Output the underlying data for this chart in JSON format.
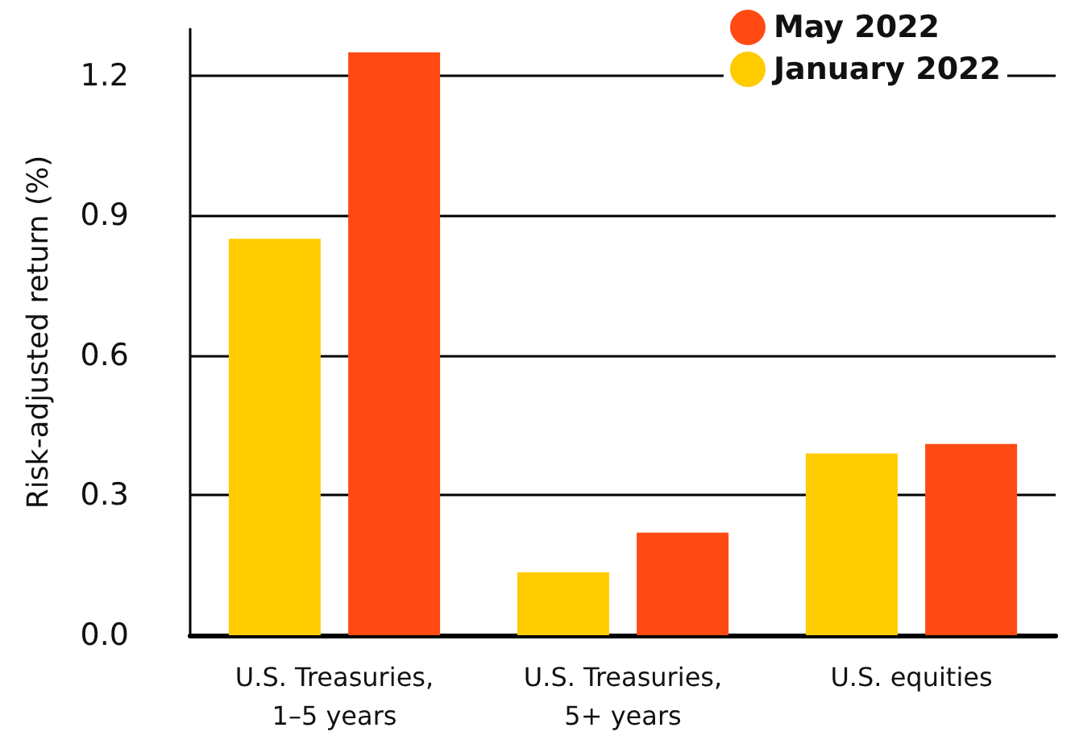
{
  "chart_data": {
    "type": "bar",
    "ylabel": "Risk-adjusted return (%)",
    "categories": [
      "U.S. Treasuries,\n1–5 years",
      "U.S. Treasuries,\n5+ years",
      "U.S. equities"
    ],
    "series": [
      {
        "name": "January 2022",
        "color": "#ffcc00",
        "values": [
          0.85,
          0.135,
          0.39
        ]
      },
      {
        "name": "May 2022",
        "color": "#ff4a14",
        "values": [
          1.25,
          0.22,
          0.41
        ]
      }
    ],
    "ylim": [
      0,
      1.3
    ],
    "yticks": [
      {
        "value": 0,
        "label": "0.0"
      },
      0.3,
      0.6,
      0.9,
      1.2
    ],
    "grid": "y",
    "legend": "top right"
  }
}
